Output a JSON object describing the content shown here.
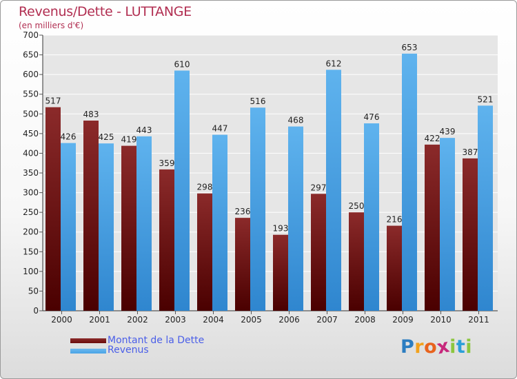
{
  "title": "Revenus/Dette - LUTTANGE",
  "subtitle": "(en milliers d'€)",
  "legend": [
    {
      "label": "Montant de la Dette",
      "color": "#6b0d0d"
    },
    {
      "label": "Revenus",
      "color": "#4aa3e6"
    }
  ],
  "logo": {
    "text": "Proxiti",
    "letters": [
      {
        "ch": "P",
        "color": "#2b7dc1"
      },
      {
        "ch": "r",
        "color": "#f2a11d"
      },
      {
        "ch": "o",
        "color": "#e8631d"
      },
      {
        "ch": "x",
        "color": "#c7287c"
      },
      {
        "ch": "i",
        "color": "#8cc63f"
      },
      {
        "ch": "t",
        "color": "#2b9fd8"
      },
      {
        "ch": "i",
        "color": "#8cc63f"
      }
    ]
  },
  "chart_data": {
    "type": "bar",
    "categories": [
      "2000",
      "2001",
      "2002",
      "2003",
      "2004",
      "2005",
      "2006",
      "2007",
      "2008",
      "2009",
      "2010",
      "2011"
    ],
    "series": [
      {
        "name": "Montant de la Dette",
        "values": [
          517,
          483,
          419,
          359,
          298,
          236,
          193,
          297,
          250,
          216,
          422,
          387
        ],
        "color": "#7a1616"
      },
      {
        "name": "Revenus",
        "values": [
          426,
          425,
          443,
          610,
          447,
          516,
          468,
          612,
          476,
          653,
          439,
          521
        ],
        "color": "#4aa3e6"
      }
    ],
    "ylim": [
      0,
      700
    ],
    "yticks": [
      0,
      50,
      100,
      150,
      200,
      250,
      300,
      350,
      400,
      450,
      500,
      550,
      600,
      650,
      700
    ],
    "grid": true
  }
}
